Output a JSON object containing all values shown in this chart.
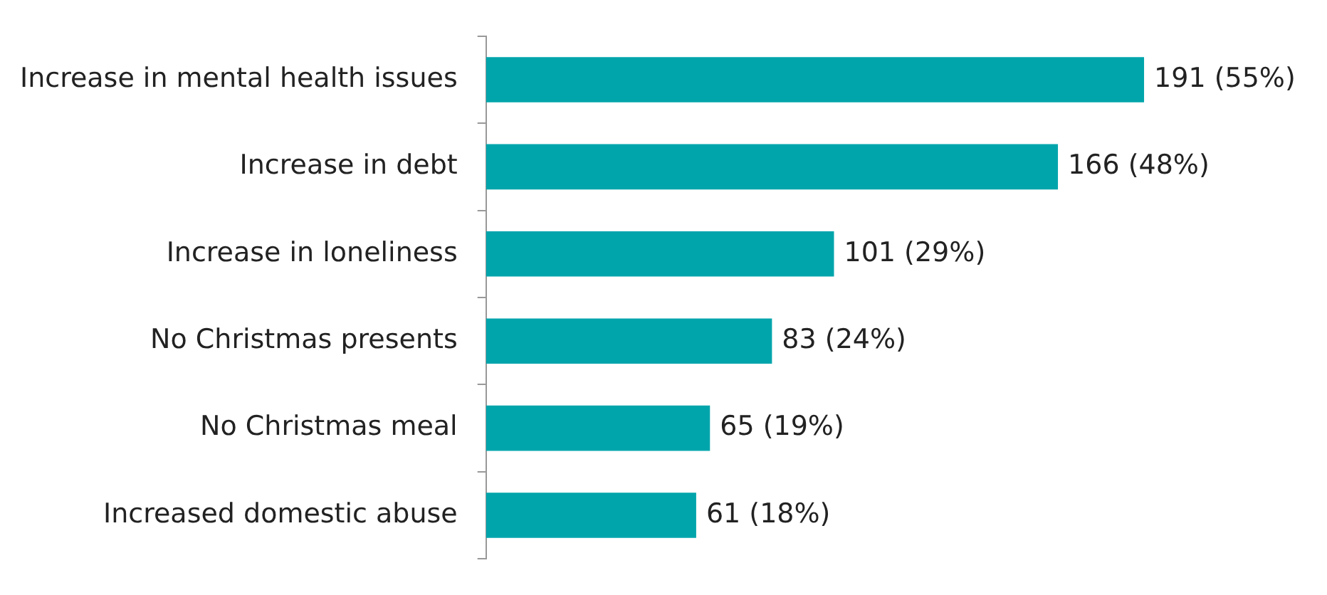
{
  "chart_data": {
    "type": "bar",
    "orientation": "horizontal",
    "categories": [
      "Increase in mental health issues",
      "Increase in debt",
      "Increase in loneliness",
      "No Christmas presents",
      "No Christmas meal",
      "Increased domestic abuse"
    ],
    "values": [
      191,
      166,
      101,
      83,
      65,
      61
    ],
    "value_labels": [
      "191 (55%)",
      "166 (48%)",
      "101 (29%)",
      "83 (24%)",
      "65 (19%)",
      "61 (18%)"
    ],
    "color": "#00a5ab",
    "legend": false
  }
}
